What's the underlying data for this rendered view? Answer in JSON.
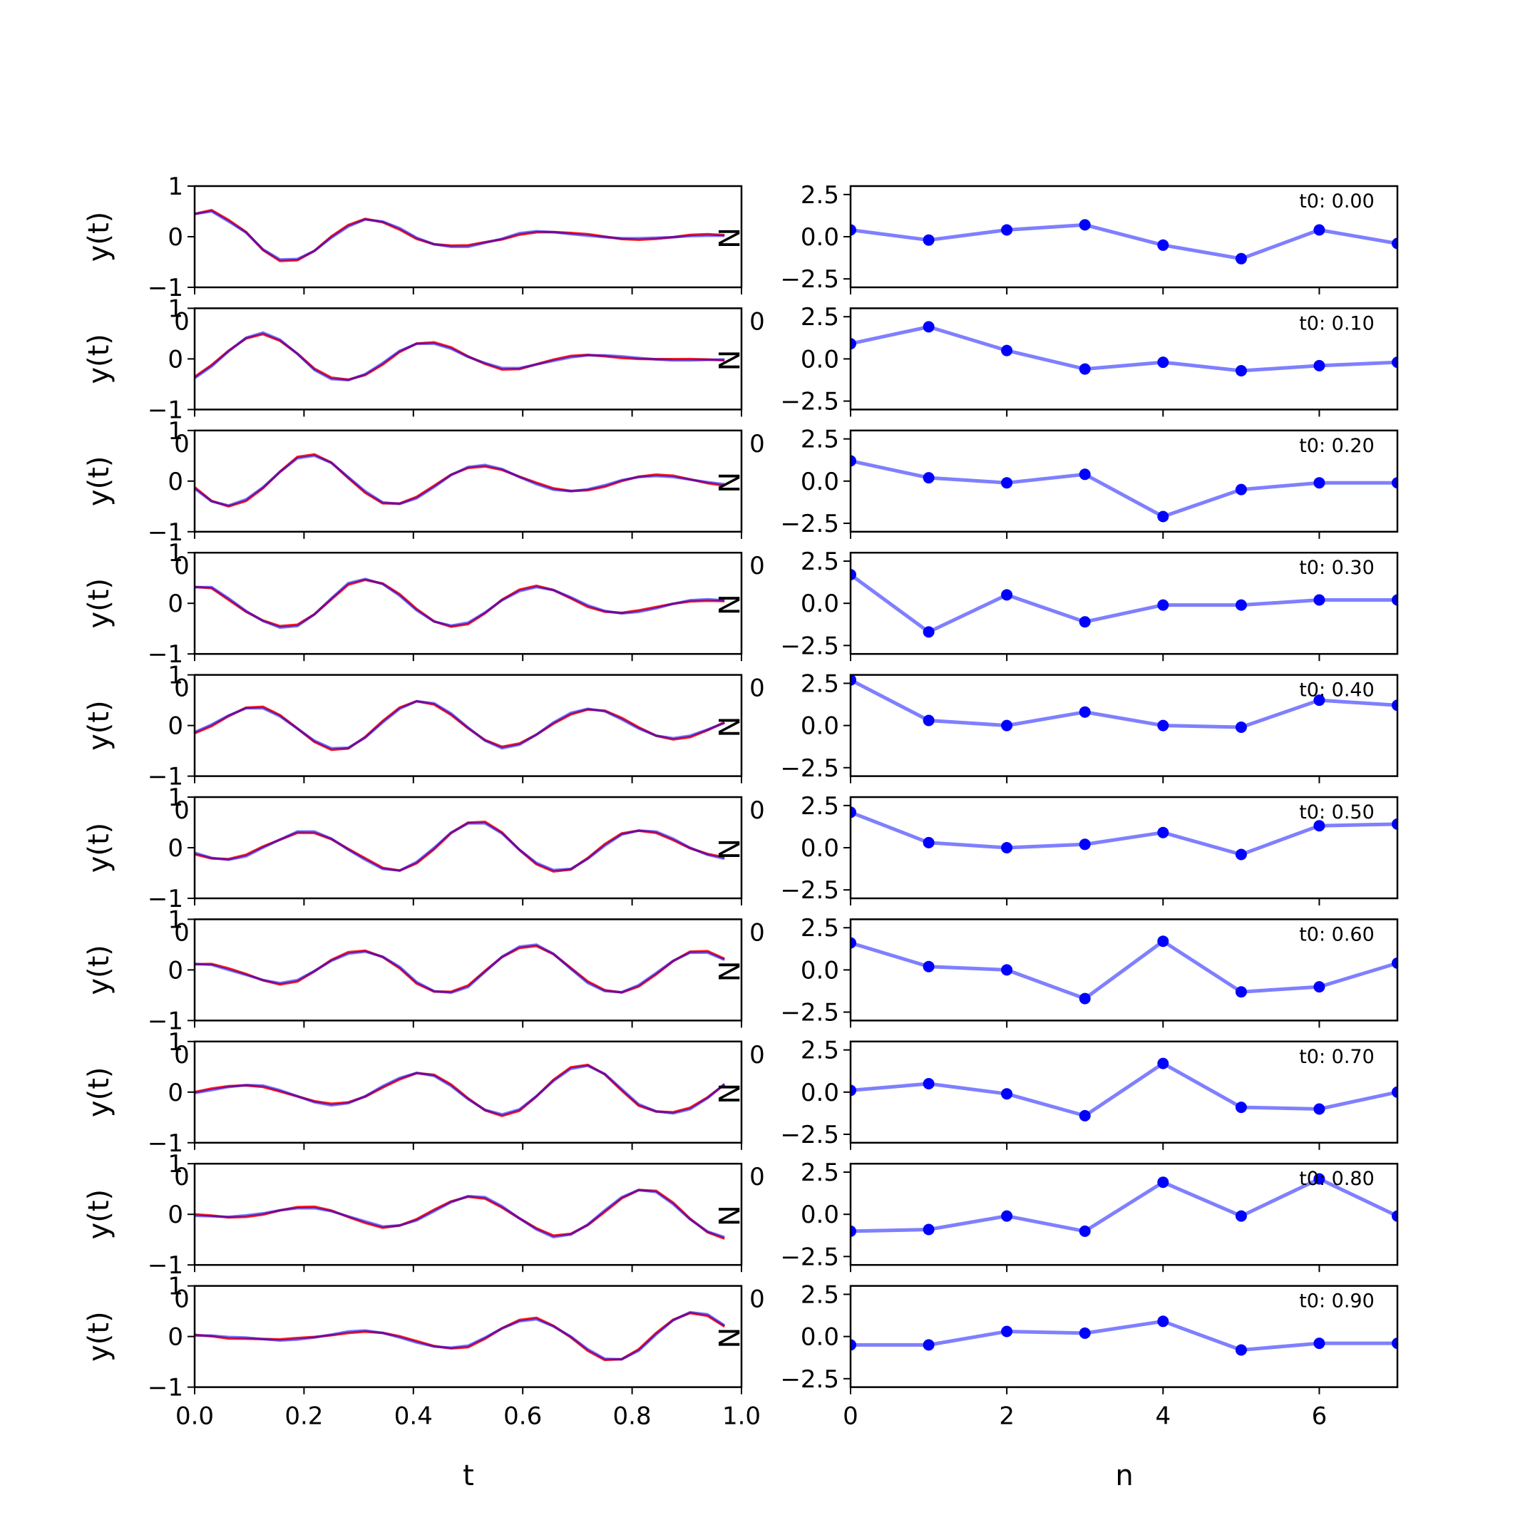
{
  "chart_data": {
    "type": "line",
    "layout": "10 rows x 2 columns of subplots",
    "colors": {
      "series_a": "#0000ff",
      "series_b": "#ff0000",
      "overlap": "#800080",
      "coeff_line": "#7f7fff",
      "coeff_marker": "#0000ff"
    },
    "left": {
      "xlabel": "t",
      "ylabel": "y(t)",
      "xlim": [
        0.0,
        1.0
      ],
      "ylim": [
        -1,
        1
      ],
      "xticks": [
        "0.0",
        "0.2",
        "0.4",
        "0.6",
        "0.8",
        "1.0"
      ],
      "yticks": [
        "1",
        "0",
        "−1"
      ],
      "edge_label": "N",
      "x": [
        0.0,
        0.031,
        0.062,
        0.094,
        0.125,
        0.156,
        0.188,
        0.219,
        0.25,
        0.281,
        0.312,
        0.344,
        0.375,
        0.406,
        0.438,
        0.469,
        0.5,
        0.531,
        0.562,
        0.594,
        0.625,
        0.656,
        0.688,
        0.719,
        0.75,
        0.781,
        0.812,
        0.844,
        0.875,
        0.906,
        0.938,
        0.969
      ],
      "rows": [
        [
          0.45,
          0.5,
          0.3,
          0.08,
          -0.25,
          -0.45,
          -0.44,
          -0.28,
          -0.02,
          0.2,
          0.34,
          0.3,
          0.17,
          -0.02,
          -0.15,
          -0.2,
          -0.2,
          -0.12,
          -0.04,
          0.07,
          0.11,
          0.09,
          0.05,
          0.02,
          -0.01,
          -0.03,
          -0.03,
          -0.02,
          -0.01,
          0.01,
          0.02,
          0.02
        ],
        [
          -0.38,
          -0.15,
          0.15,
          0.42,
          0.52,
          0.38,
          0.1,
          -0.22,
          -0.4,
          -0.42,
          -0.3,
          -0.08,
          0.16,
          0.3,
          0.3,
          0.2,
          0.04,
          -0.08,
          -0.18,
          -0.18,
          -0.11,
          -0.04,
          0.03,
          0.07,
          0.07,
          0.05,
          0.02,
          -0.01,
          -0.03,
          -0.03,
          -0.02,
          -0.01
        ],
        [
          -0.15,
          -0.4,
          -0.48,
          -0.36,
          -0.12,
          0.18,
          0.45,
          0.5,
          0.36,
          0.08,
          -0.2,
          -0.42,
          -0.45,
          -0.34,
          -0.12,
          0.12,
          0.28,
          0.32,
          0.24,
          0.08,
          -0.06,
          -0.17,
          -0.2,
          -0.16,
          -0.08,
          0.02,
          0.08,
          0.1,
          0.08,
          0.03,
          -0.02,
          -0.06
        ],
        [
          0.32,
          0.32,
          0.1,
          -0.15,
          -0.35,
          -0.48,
          -0.45,
          -0.22,
          0.1,
          0.4,
          0.48,
          0.38,
          0.15,
          -0.14,
          -0.36,
          -0.44,
          -0.38,
          -0.18,
          0.06,
          0.24,
          0.32,
          0.26,
          0.12,
          -0.04,
          -0.15,
          -0.2,
          -0.17,
          -0.1,
          -0.01,
          0.06,
          0.08,
          0.06
        ],
        [
          -0.13,
          0.02,
          0.2,
          0.34,
          0.34,
          0.18,
          -0.06,
          -0.3,
          -0.45,
          -0.44,
          -0.24,
          0.06,
          0.33,
          0.48,
          0.44,
          0.24,
          -0.04,
          -0.3,
          -0.45,
          -0.38,
          -0.18,
          0.06,
          0.25,
          0.33,
          0.28,
          0.12,
          -0.06,
          -0.2,
          -0.25,
          -0.2,
          -0.08,
          0.05
        ],
        [
          -0.1,
          -0.2,
          -0.24,
          -0.17,
          0.0,
          0.16,
          0.32,
          0.32,
          0.18,
          -0.04,
          -0.24,
          -0.42,
          -0.45,
          -0.28,
          0.0,
          0.3,
          0.48,
          0.48,
          0.28,
          -0.04,
          -0.3,
          -0.44,
          -0.42,
          -0.22,
          0.04,
          0.26,
          0.34,
          0.32,
          0.18,
          0.0,
          -0.14,
          -0.22
        ],
        [
          0.12,
          0.1,
          0.0,
          -0.1,
          -0.2,
          -0.26,
          -0.2,
          -0.02,
          0.18,
          0.32,
          0.36,
          0.26,
          0.06,
          -0.24,
          -0.42,
          -0.45,
          -0.34,
          -0.04,
          0.26,
          0.46,
          0.5,
          0.32,
          0.02,
          -0.26,
          -0.42,
          -0.44,
          -0.3,
          -0.06,
          0.18,
          0.34,
          0.34,
          0.2
        ],
        [
          -0.02,
          0.04,
          0.1,
          0.14,
          0.13,
          0.04,
          -0.08,
          -0.2,
          -0.26,
          -0.22,
          -0.08,
          0.12,
          0.28,
          0.38,
          0.32,
          0.12,
          -0.14,
          -0.35,
          -0.44,
          -0.34,
          -0.08,
          0.22,
          0.46,
          0.52,
          0.36,
          0.06,
          -0.24,
          -0.38,
          -0.42,
          -0.34,
          -0.12,
          0.16
        ],
        [
          -0.03,
          -0.04,
          -0.05,
          -0.02,
          0.02,
          0.08,
          0.12,
          0.12,
          0.06,
          -0.04,
          -0.14,
          -0.24,
          -0.22,
          -0.12,
          0.06,
          0.24,
          0.36,
          0.34,
          0.16,
          -0.08,
          -0.3,
          -0.45,
          -0.4,
          -0.2,
          0.08,
          0.34,
          0.48,
          0.44,
          0.2,
          -0.1,
          -0.34,
          -0.45
        ],
        [
          0.02,
          0.02,
          -0.01,
          -0.02,
          -0.05,
          -0.08,
          -0.06,
          -0.02,
          0.04,
          0.1,
          0.12,
          0.07,
          -0.02,
          -0.12,
          -0.2,
          -0.22,
          -0.18,
          -0.02,
          0.16,
          0.3,
          0.34,
          0.2,
          0.0,
          -0.25,
          -0.44,
          -0.45,
          -0.28,
          0.04,
          0.32,
          0.48,
          0.44,
          0.22
        ]
      ]
    },
    "right": {
      "xlabel": "n",
      "xlim": [
        0,
        7
      ],
      "ylim": [
        -3.0,
        3.0
      ],
      "xticks": [
        "0",
        "2",
        "4",
        "6"
      ],
      "yticks": [
        "2.5",
        "0.0",
        "−2.5"
      ],
      "x": [
        0,
        1,
        2,
        3,
        4,
        5,
        6,
        7
      ],
      "rows": [
        {
          "label": "t0: 0.00",
          "values": [
            0.4,
            -0.2,
            0.4,
            0.7,
            -0.5,
            -1.3,
            0.4,
            -0.4
          ]
        },
        {
          "label": "t0: 0.10",
          "values": [
            0.9,
            1.9,
            0.5,
            -0.6,
            -0.2,
            -0.7,
            -0.4,
            -0.2
          ]
        },
        {
          "label": "t0: 0.20",
          "values": [
            1.2,
            0.2,
            -0.1,
            0.4,
            -2.1,
            -0.5,
            -0.1,
            -0.1
          ]
        },
        {
          "label": "t0: 0.30",
          "values": [
            1.7,
            -1.7,
            0.5,
            -1.1,
            -0.1,
            -0.1,
            0.2,
            0.2
          ]
        },
        {
          "label": "t0: 0.40",
          "values": [
            2.7,
            0.3,
            0.0,
            0.8,
            0.0,
            -0.1,
            1.5,
            1.2
          ]
        },
        {
          "label": "t0: 0.50",
          "values": [
            2.1,
            0.3,
            0.0,
            0.2,
            0.9,
            -0.4,
            1.3,
            1.4
          ]
        },
        {
          "label": "t0: 0.60",
          "values": [
            1.6,
            0.2,
            0.0,
            -1.7,
            1.7,
            -1.3,
            -1.0,
            0.4
          ]
        },
        {
          "label": "t0: 0.70",
          "values": [
            0.1,
            0.5,
            -0.1,
            -1.4,
            1.7,
            -0.9,
            -1.0,
            0.0
          ]
        },
        {
          "label": "t0: 0.80",
          "values": [
            -1.0,
            -0.9,
            -0.1,
            -1.0,
            1.9,
            -0.1,
            2.1,
            -0.1
          ]
        },
        {
          "label": "t0: 0.90",
          "values": [
            -0.5,
            -0.5,
            0.3,
            0.2,
            0.9,
            -0.8,
            -0.4,
            -0.4
          ]
        }
      ]
    }
  }
}
